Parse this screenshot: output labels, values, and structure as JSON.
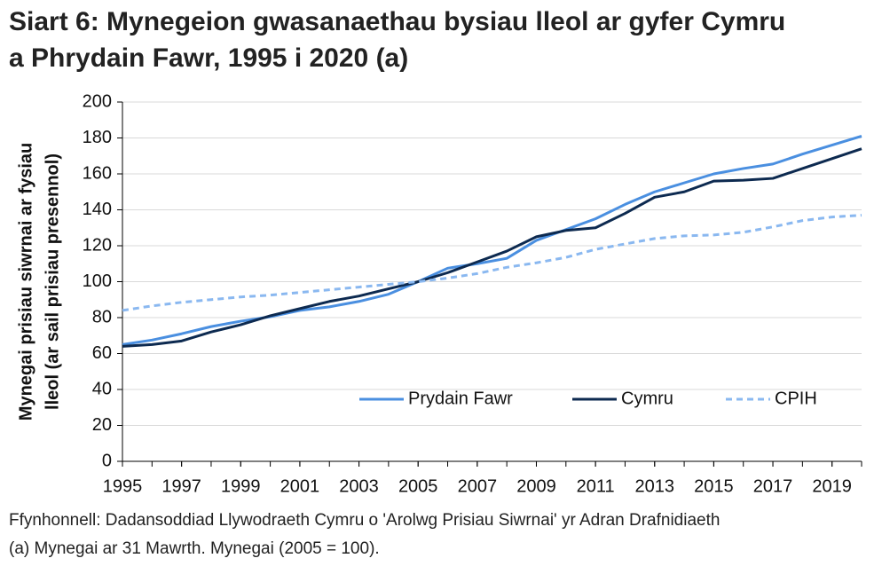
{
  "chart_data": {
    "type": "line",
    "title": "Siart 6: Mynegeion gwasanaethau bysiau lleol ar gyfer Cymru a Phrydain Fawr, 1995 i 2020 (a)",
    "y_label": [
      "Mynegai prisiau siwrnai ar fysiau",
      "lleol (ar sail prisiau presennol)"
    ],
    "x": [
      1995,
      1996,
      1997,
      1998,
      1999,
      2000,
      2001,
      2002,
      2003,
      2004,
      2005,
      2006,
      2007,
      2008,
      2009,
      2010,
      2011,
      2012,
      2013,
      2014,
      2015,
      2016,
      2017,
      2018,
      2019,
      2020
    ],
    "series": [
      {
        "name": "Prydain Fawr",
        "color": "#4a8fe0",
        "dash": false,
        "values": [
          65,
          67.5,
          71,
          75,
          78,
          80.5,
          84,
          86,
          89,
          93,
          100,
          107.5,
          110,
          113,
          123,
          129,
          135,
          143,
          150,
          155,
          160,
          163,
          165.5,
          171,
          176,
          181
        ]
      },
      {
        "name": "Cymru",
        "color": "#0d2a50",
        "dash": false,
        "values": [
          64,
          65,
          67,
          72,
          76,
          81,
          85,
          89,
          92,
          96,
          100,
          105,
          111,
          117,
          125,
          128.5,
          130,
          138,
          147,
          150,
          156,
          156.5,
          157.5,
          163,
          168.5,
          174
        ]
      },
      {
        "name": "CPIH",
        "color": "#8ab8f0",
        "dash": true,
        "values": [
          84,
          86.5,
          88.5,
          90,
          91.5,
          92.5,
          94,
          95.5,
          97,
          98.5,
          100,
          102,
          104.5,
          108,
          110.5,
          113.5,
          118,
          121,
          124,
          125.5,
          126,
          127.5,
          130.5,
          134,
          136,
          137
        ]
      }
    ],
    "xlim": [
      1995,
      2020
    ],
    "xticks": [
      1995,
      1997,
      1999,
      2001,
      2003,
      2005,
      2007,
      2009,
      2011,
      2013,
      2015,
      2017,
      2019
    ],
    "ylim": [
      0,
      200
    ],
    "yticks": [
      0,
      20,
      40,
      60,
      80,
      100,
      120,
      140,
      160,
      180,
      200
    ],
    "grid": true,
    "source": "Ffynhonnell: Dadansoddiad Llywodraeth Cymru o 'Arolwg Prisiau Siwrnai' yr Adran Drafnidiaeth",
    "note": "(a) Mynegai ar 31 Mawrth. Mynegai (2005 = 100)."
  }
}
